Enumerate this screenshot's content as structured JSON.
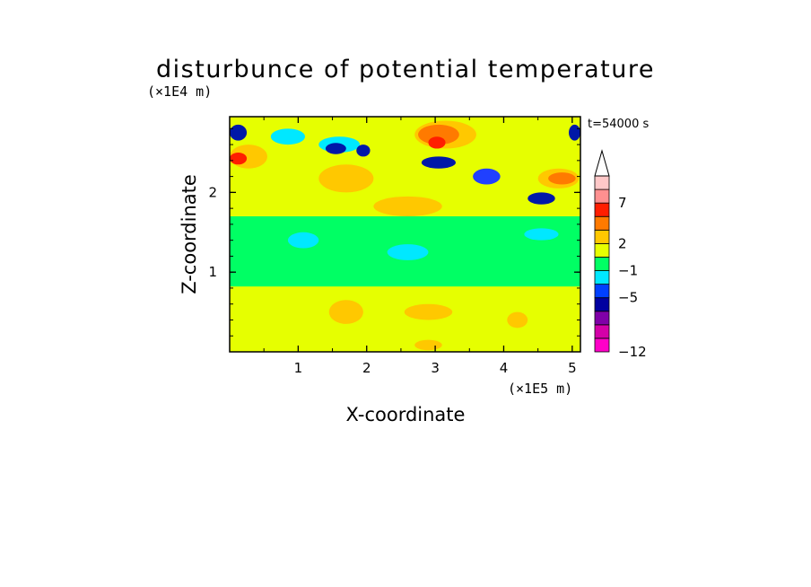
{
  "chart_data": {
    "type": "heatmap",
    "title": "disturbunce of potential temperature",
    "xlabel": "X-coordinate",
    "ylabel": "Z-coordinate",
    "x_unit_label": "(×1E5 m)",
    "y_unit_label": "(×1E4 m)",
    "time_label": "t=54000 s",
    "xlim": [
      0,
      5.12
    ],
    "ylim": [
      0,
      2.95
    ],
    "x_ticks": [
      1,
      2,
      3,
      4,
      5
    ],
    "x_tick_labels": [
      "1",
      "2",
      "3",
      "4",
      "5"
    ],
    "y_ticks": [
      1,
      2
    ],
    "y_tick_labels": [
      "1",
      "2"
    ],
    "colorbar": {
      "extend": "max",
      "levels": [
        -12,
        -5,
        -1,
        2,
        7
      ],
      "level_labels": [
        "−12",
        "−5",
        "−1",
        "2",
        "7"
      ],
      "colors_bottom_to_top": [
        "#ff00c8",
        "#d400a8",
        "#8000a8",
        "#0000a0",
        "#0040ff",
        "#00e8ff",
        "#00ff64",
        "#e6ff00",
        "#ffc800",
        "#ff7a00",
        "#ff1e00",
        "#ff9090",
        "#ffc8c8"
      ]
    },
    "color_key": {
      "neg_strong": "#0018a8",
      "neg_mid": "#2040ff",
      "neg_weak": "#00e8ff",
      "zero": "#00ff64",
      "pos_weak": "#e6ff00",
      "pos_mid": "#ffc800",
      "pos_strong": "#ff7a00",
      "pos_max": "#ff1e00"
    },
    "fields": {
      "background": "zero",
      "regions": [
        {
          "level": "pos_weak",
          "x": [
            0.0,
            5.12
          ],
          "z": [
            0.0,
            0.82
          ]
        },
        {
          "level": "pos_mid",
          "x": [
            1.45,
            1.95
          ],
          "z": [
            0.35,
            0.65
          ]
        },
        {
          "level": "pos_mid",
          "x": [
            2.55,
            3.25
          ],
          "z": [
            0.4,
            0.6
          ]
        },
        {
          "level": "pos_mid",
          "x": [
            4.05,
            4.35
          ],
          "z": [
            0.3,
            0.5
          ]
        },
        {
          "level": "pos_mid",
          "x": [
            2.7,
            3.1
          ],
          "z": [
            0.02,
            0.15
          ]
        },
        {
          "level": "pos_weak",
          "x": [
            0.0,
            5.12
          ],
          "z": [
            1.7,
            2.95
          ]
        },
        {
          "level": "pos_mid",
          "x": [
            0.0,
            0.55
          ],
          "z": [
            2.3,
            2.6
          ]
        },
        {
          "level": "pos_max",
          "x": [
            0.0,
            0.25
          ],
          "z": [
            2.35,
            2.5
          ]
        },
        {
          "level": "neg_strong",
          "x": [
            0.0,
            0.25
          ],
          "z": [
            2.65,
            2.85
          ]
        },
        {
          "level": "neg_weak",
          "x": [
            0.6,
            1.1
          ],
          "z": [
            2.6,
            2.8
          ]
        },
        {
          "level": "neg_weak",
          "x": [
            1.3,
            1.9
          ],
          "z": [
            2.5,
            2.7
          ]
        },
        {
          "level": "neg_strong",
          "x": [
            1.4,
            1.7
          ],
          "z": [
            2.48,
            2.62
          ]
        },
        {
          "level": "neg_strong",
          "x": [
            1.85,
            2.05
          ],
          "z": [
            2.45,
            2.6
          ]
        },
        {
          "level": "pos_mid",
          "x": [
            2.7,
            3.6
          ],
          "z": [
            2.55,
            2.9
          ]
        },
        {
          "level": "pos_strong",
          "x": [
            2.75,
            3.35
          ],
          "z": [
            2.6,
            2.85
          ]
        },
        {
          "level": "pos_max",
          "x": [
            2.9,
            3.15
          ],
          "z": [
            2.55,
            2.7
          ]
        },
        {
          "level": "neg_strong",
          "x": [
            2.8,
            3.3
          ],
          "z": [
            2.3,
            2.45
          ]
        },
        {
          "level": "neg_mid",
          "x": [
            3.55,
            3.95
          ],
          "z": [
            2.1,
            2.3
          ]
        },
        {
          "level": "neg_strong",
          "x": [
            4.35,
            4.75
          ],
          "z": [
            1.85,
            2.0
          ]
        },
        {
          "level": "pos_mid",
          "x": [
            4.5,
            5.1
          ],
          "z": [
            2.05,
            2.3
          ]
        },
        {
          "level": "pos_strong",
          "x": [
            4.65,
            5.05
          ],
          "z": [
            2.1,
            2.25
          ]
        },
        {
          "level": "neg_strong",
          "x": [
            4.95,
            5.12
          ],
          "z": [
            2.65,
            2.85
          ]
        },
        {
          "level": "pos_mid",
          "x": [
            1.3,
            2.1
          ],
          "z": [
            2.0,
            2.35
          ]
        },
        {
          "level": "pos_mid",
          "x": [
            2.1,
            3.1
          ],
          "z": [
            1.7,
            1.95
          ]
        },
        {
          "level": "neg_weak",
          "x": [
            0.85,
            1.3
          ],
          "z": [
            1.3,
            1.5
          ]
        },
        {
          "level": "neg_weak",
          "x": [
            2.3,
            2.9
          ],
          "z": [
            1.15,
            1.35
          ]
        },
        {
          "level": "neg_weak",
          "x": [
            4.3,
            4.8
          ],
          "z": [
            1.4,
            1.55
          ]
        }
      ]
    }
  }
}
